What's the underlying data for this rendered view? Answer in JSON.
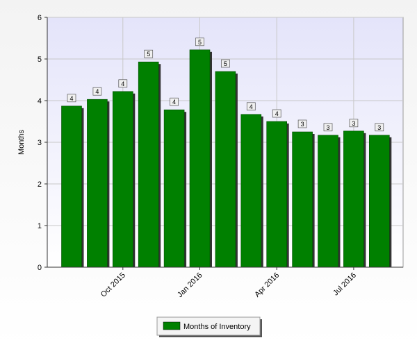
{
  "chart_data": {
    "type": "bar",
    "y_label": "Months",
    "categories": [
      null,
      null,
      "Oct 2015",
      null,
      null,
      "Jan 2016",
      null,
      null,
      "Apr 2016",
      null,
      null,
      "Jul 2016",
      null
    ],
    "series": [
      {
        "name": "Months of Inventory",
        "color": "#008000",
        "values": [
          3.87,
          4.03,
          4.22,
          4.93,
          3.78,
          5.22,
          4.7,
          3.67,
          3.5,
          3.25,
          3.17,
          3.27,
          3.17
        ],
        "value_labels": [
          "4",
          "4",
          "4",
          "5",
          "4",
          "5",
          "5",
          "4",
          "4",
          "3",
          "3",
          "3",
          "3"
        ]
      }
    ],
    "ylim": [
      0,
      6
    ],
    "yticks": [
      0,
      1,
      2,
      3,
      4,
      5,
      6
    ],
    "grid": true
  }
}
